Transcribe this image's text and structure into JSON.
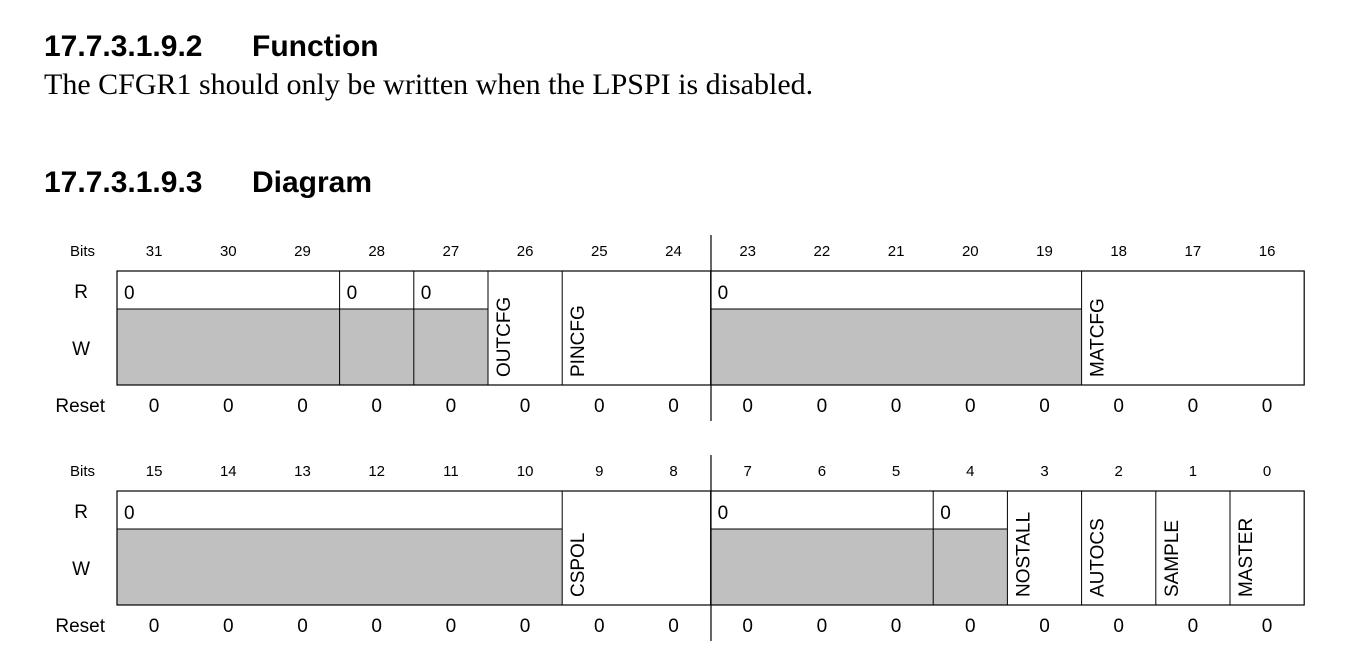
{
  "sections": [
    {
      "number": "17.7.3.1.9.2",
      "title": "Function"
    },
    {
      "number": "17.7.3.1.9.3",
      "title": "Diagram"
    }
  ],
  "function_text": "The CFGR1 should only be written when the LPSPI is disabled.",
  "row_labels": {
    "bits": "Bits",
    "read": "R",
    "write": "W",
    "reset": "Reset"
  },
  "colors": {
    "field_name": "#0000ff",
    "reserved_fill": "#c0c0c0",
    "border": "#000000"
  },
  "registers": [
    {
      "bits": [
        "31",
        "30",
        "29",
        "28",
        "27",
        "26",
        "25",
        "24",
        "23",
        "22",
        "21",
        "20",
        "19",
        "18",
        "17",
        "16"
      ],
      "resets": [
        "0",
        "0",
        "0",
        "0",
        "0",
        "0",
        "0",
        "0",
        "0",
        "0",
        "0",
        "0",
        "0",
        "0",
        "0",
        "0"
      ],
      "fields": [
        {
          "start": 0,
          "span": 3,
          "type": "reserved",
          "read_value": "0"
        },
        {
          "start": 3,
          "span": 1,
          "type": "reserved",
          "read_value": "0"
        },
        {
          "start": 4,
          "span": 1,
          "type": "reserved",
          "read_value": "0"
        },
        {
          "start": 5,
          "span": 1,
          "type": "named",
          "name": "OUTCFG"
        },
        {
          "start": 6,
          "span": 2,
          "type": "named",
          "name": "PINCFG"
        },
        {
          "start": 8,
          "span": 5,
          "type": "reserved",
          "read_value": "0"
        },
        {
          "start": 13,
          "span": 3,
          "type": "named",
          "name": "MATCFG"
        }
      ]
    },
    {
      "bits": [
        "15",
        "14",
        "13",
        "12",
        "11",
        "10",
        "9",
        "8",
        "7",
        "6",
        "5",
        "4",
        "3",
        "2",
        "1",
        "0"
      ],
      "resets": [
        "0",
        "0",
        "0",
        "0",
        "0",
        "0",
        "0",
        "0",
        "0",
        "0",
        "0",
        "0",
        "0",
        "0",
        "0",
        "0"
      ],
      "fields": [
        {
          "start": 0,
          "span": 6,
          "type": "reserved",
          "read_value": "0"
        },
        {
          "start": 6,
          "span": 2,
          "type": "named",
          "name": "CSPOL"
        },
        {
          "start": 8,
          "span": 3,
          "type": "reserved",
          "read_value": "0"
        },
        {
          "start": 11,
          "span": 1,
          "type": "reserved",
          "read_value": "0"
        },
        {
          "start": 12,
          "span": 1,
          "type": "named",
          "name": "NOSTALL"
        },
        {
          "start": 13,
          "span": 1,
          "type": "named",
          "name": "AUTOCS"
        },
        {
          "start": 14,
          "span": 1,
          "type": "named",
          "name": "SAMPLE"
        },
        {
          "start": 15,
          "span": 1,
          "type": "named",
          "name": "MASTER"
        }
      ]
    }
  ]
}
